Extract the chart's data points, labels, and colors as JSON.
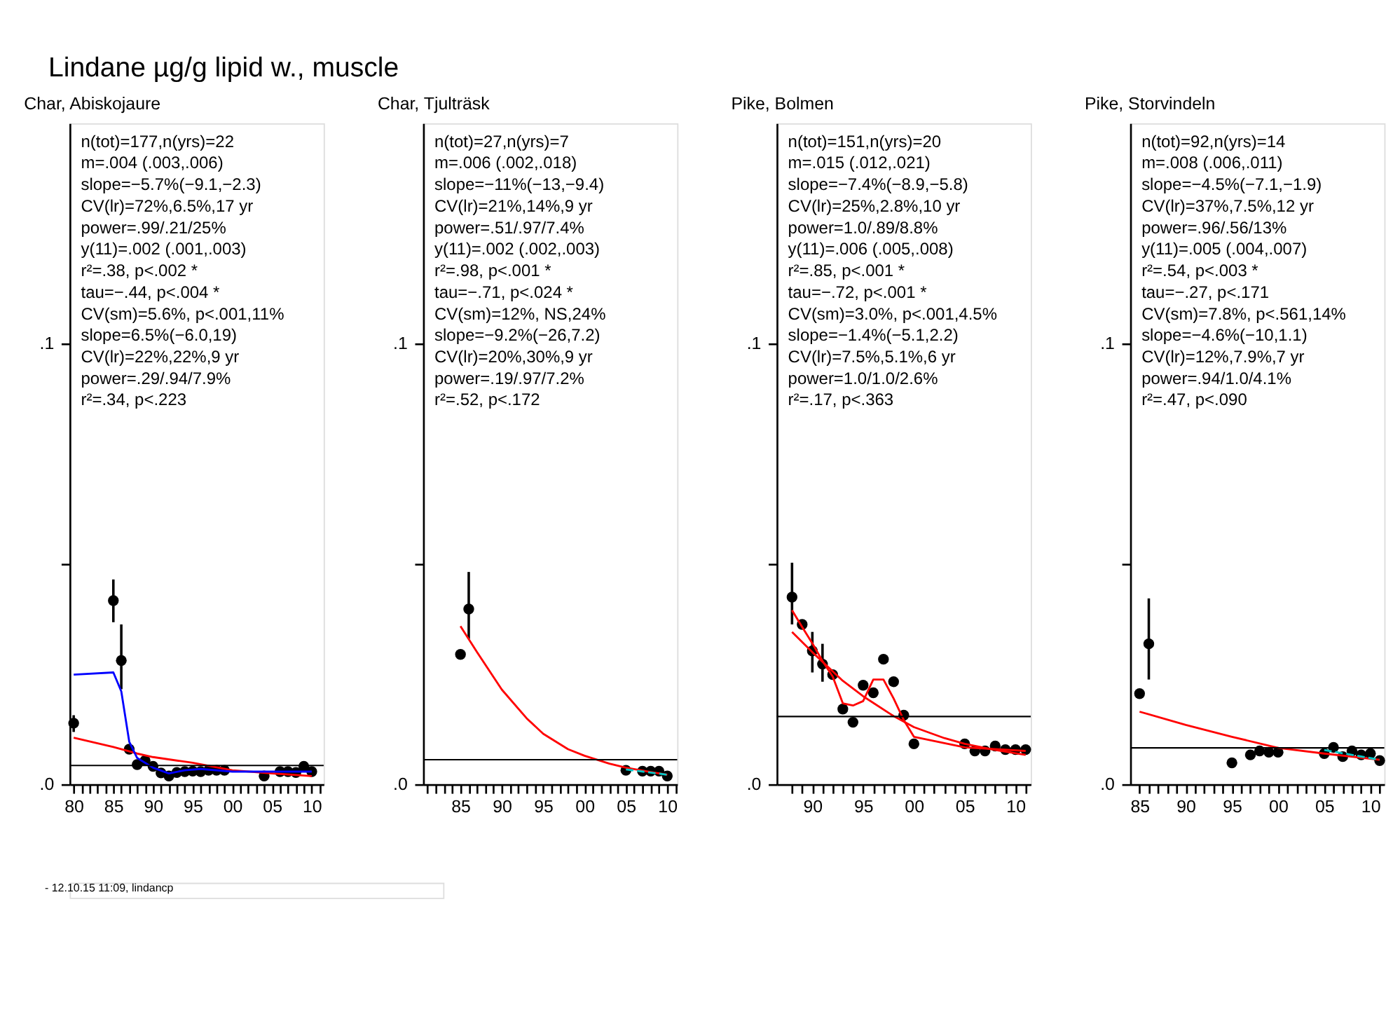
{
  "chart_data": [
    {
      "type": "scatter",
      "title": "Lindane µg/g lipid w., muscle",
      "subtitle": "Char, Abiskojaure",
      "xlim": [
        1979.5,
        2011.5
      ],
      "ylim": [
        0,
        0.15
      ],
      "yticks": [
        {
          "value": 0,
          "label": ".0"
        },
        {
          "value": 0.05,
          "label": null
        },
        {
          "value": 0.1,
          "label": ".1"
        }
      ],
      "xticks": [
        {
          "value": 1980,
          "label": "80"
        },
        {
          "value": 1981,
          "label": null
        },
        {
          "value": 1982,
          "label": null
        },
        {
          "value": 1983,
          "label": null
        },
        {
          "value": 1984,
          "label": null
        },
        {
          "value": 1985,
          "label": "85"
        },
        {
          "value": 1986,
          "label": null
        },
        {
          "value": 1987,
          "label": null
        },
        {
          "value": 1988,
          "label": null
        },
        {
          "value": 1989,
          "label": null
        },
        {
          "value": 1990,
          "label": "90"
        },
        {
          "value": 1991,
          "label": null
        },
        {
          "value": 1992,
          "label": null
        },
        {
          "value": 1993,
          "label": null
        },
        {
          "value": 1994,
          "label": null
        },
        {
          "value": 1995,
          "label": "95"
        },
        {
          "value": 1996,
          "label": null
        },
        {
          "value": 1997,
          "label": null
        },
        {
          "value": 1998,
          "label": null
        },
        {
          "value": 1999,
          "label": null
        },
        {
          "value": 2000,
          "label": "00"
        },
        {
          "value": 2001,
          "label": null
        },
        {
          "value": 2002,
          "label": null
        },
        {
          "value": 2003,
          "label": null
        },
        {
          "value": 2004,
          "label": null
        },
        {
          "value": 2005,
          "label": "05"
        },
        {
          "value": 2006,
          "label": null
        },
        {
          "value": 2007,
          "label": null
        },
        {
          "value": 2008,
          "label": null
        },
        {
          "value": 2009,
          "label": null
        },
        {
          "value": 2010,
          "label": "10"
        },
        {
          "value": 2011,
          "label": null
        }
      ],
      "series": [
        {
          "type": "scatter",
          "marker": "circle",
          "color": "#000000",
          "x": [
            1980,
            1985,
            1986,
            1987,
            1988,
            1989,
            1990,
            1991,
            1992,
            1993,
            1994,
            1995,
            1996,
            1997,
            1998,
            1999,
            2004,
            2006,
            2007,
            2008,
            2009,
            2010
          ],
          "values": [
            0.0139,
            0.0417,
            0.0281,
            0.008,
            0.0045,
            0.0054,
            0.0041,
            0.0026,
            0.0019,
            0.0027,
            0.0029,
            0.003,
            0.0029,
            0.0032,
            0.0032,
            0.0032,
            0.0019,
            0.0029,
            0.0029,
            0.0027,
            0.0041,
            0.0029
          ],
          "errors": [
            [
              0.0119,
              0.0157
            ],
            [
              0.0368,
              0.0465
            ],
            [
              0.0216,
              0.0363
            ],
            null,
            null,
            null,
            null,
            null,
            null,
            null,
            null,
            null,
            null,
            null,
            null,
            null,
            null,
            null,
            null,
            null,
            null,
            null
          ]
        },
        {
          "type": "line",
          "line_style": "solid",
          "color": "#ff0000",
          "x": [
            1980,
            1985,
            1988,
            1990,
            1995,
            2000,
            2005,
            2010
          ],
          "values": [
            0.0106,
            0.0085,
            0.007,
            0.0062,
            0.0049,
            0.0032,
            0.0025,
            0.0019
          ]
        },
        {
          "type": "line",
          "line_style": "solid",
          "color": "#0000ff",
          "x": [
            1980,
            1985,
            1986,
            1987,
            1988,
            1990,
            1992,
            1994,
            1996,
            2000,
            2010
          ],
          "values": [
            0.0249,
            0.0254,
            0.0211,
            0.0097,
            0.006,
            0.0038,
            0.0025,
            0.0032,
            0.0035,
            0.0029,
            0.0029
          ]
        }
      ],
      "ref_lines": [
        {
          "axis": "y",
          "value": 0.0043,
          "color": "#000000"
        }
      ],
      "annotations": [
        "n(tot)=177,n(yrs)=22",
        "m=.004 (.003,.006)",
        "slope=−5.7%(−9.1,−2.3)",
        "CV(lr)=72%,6.5%,17 yr",
        "power=.99/.21/25%",
        "y(11)=.002 (.001,.003)",
        "r²=.38, p<.002 *",
        "tau=−.44, p<.004 *",
        "CV(sm)=5.6%, p<.001,11%",
        "slope=6.5%(−6.0,19)",
        "CV(lr)=22%,22%,9 yr",
        "power=.29/.94/7.9%",
        "r²=.34, p<.223"
      ]
    },
    {
      "type": "scatter",
      "subtitle": "Char, Tjulträsk",
      "xlim": [
        1980.5,
        2011.2
      ],
      "ylim": [
        0,
        0.15
      ],
      "yticks": [
        {
          "value": 0,
          "label": ".0"
        },
        {
          "value": 0.05,
          "label": null
        },
        {
          "value": 0.1,
          "label": ".1"
        }
      ],
      "xticks": [
        {
          "value": 1981,
          "label": null
        },
        {
          "value": 1982,
          "label": null
        },
        {
          "value": 1983,
          "label": null
        },
        {
          "value": 1984,
          "label": null
        },
        {
          "value": 1985,
          "label": "85"
        },
        {
          "value": 1986,
          "label": null
        },
        {
          "value": 1987,
          "label": null
        },
        {
          "value": 1988,
          "label": null
        },
        {
          "value": 1989,
          "label": null
        },
        {
          "value": 1990,
          "label": "90"
        },
        {
          "value": 1991,
          "label": null
        },
        {
          "value": 1992,
          "label": null
        },
        {
          "value": 1993,
          "label": null
        },
        {
          "value": 1994,
          "label": null
        },
        {
          "value": 1995,
          "label": "95"
        },
        {
          "value": 1996,
          "label": null
        },
        {
          "value": 1997,
          "label": null
        },
        {
          "value": 1998,
          "label": null
        },
        {
          "value": 1999,
          "label": null
        },
        {
          "value": 2000,
          "label": "00"
        },
        {
          "value": 2001,
          "label": null
        },
        {
          "value": 2002,
          "label": null
        },
        {
          "value": 2003,
          "label": null
        },
        {
          "value": 2004,
          "label": null
        },
        {
          "value": 2005,
          "label": "05"
        },
        {
          "value": 2006,
          "label": null
        },
        {
          "value": 2007,
          "label": null
        },
        {
          "value": 2008,
          "label": null
        },
        {
          "value": 2009,
          "label": null
        },
        {
          "value": 2010,
          "label": "10"
        },
        {
          "value": 2011,
          "label": null
        }
      ],
      "series": [
        {
          "type": "scatter",
          "marker": "circle",
          "color": "#000000",
          "x": [
            1985,
            1986,
            2005,
            2007,
            2008,
            2009,
            2010
          ],
          "values": [
            0.0295,
            0.0398,
            0.0032,
            0.003,
            0.003,
            0.003,
            0.0019
          ],
          "errors": [
            null,
            [
              0.033,
              0.0482
            ],
            null,
            null,
            null,
            null,
            null
          ]
        },
        {
          "type": "line",
          "line_style": "solid",
          "color": "#ff0000",
          "x": [
            1985,
            1987,
            1990,
            1993,
            1995,
            1998,
            2000,
            2003,
            2005,
            2008,
            2010
          ],
          "values": [
            0.0359,
            0.03,
            0.0215,
            0.015,
            0.0115,
            0.008,
            0.0065,
            0.0047,
            0.0038,
            0.0028,
            0.0022
          ]
        },
        {
          "type": "line",
          "line_style": "dashed",
          "color": "#00c8c8",
          "x": [
            2005,
            2010
          ],
          "values": [
            0.0034,
            0.0022
          ]
        }
      ],
      "ref_lines": [
        {
          "axis": "y",
          "value": 0.0056,
          "color": "#000000"
        }
      ],
      "annotations": [
        "n(tot)=27,n(yrs)=7",
        "m=.006 (.002,.018)",
        "slope=−11%(−13,−9.4)",
        "CV(lr)=21%,14%,9 yr",
        "power=.51/.97/7.4%",
        "y(11)=.002 (.002,.003)",
        "r²=.98, p<.001 *",
        "tau=−.71, p<.024 *",
        "CV(sm)=12%, NS,24%",
        "slope=−9.2%(−26,7.2)",
        "CV(lr)=20%,30%,9 yr",
        "power=.19/.97/7.2%",
        "r²=.52, p<.172"
      ]
    },
    {
      "type": "scatter",
      "subtitle": "Pike, Bolmen",
      "xlim": [
        1986.5,
        2011.5
      ],
      "ylim": [
        0,
        0.15
      ],
      "yticks": [
        {
          "value": 0,
          "label": ".0"
        },
        {
          "value": 0.05,
          "label": null
        },
        {
          "value": 0.1,
          "label": ".1"
        }
      ],
      "xticks": [
        {
          "value": 1988,
          "label": null
        },
        {
          "value": 1989,
          "label": null
        },
        {
          "value": 1990,
          "label": "90"
        },
        {
          "value": 1991,
          "label": null
        },
        {
          "value": 1992,
          "label": null
        },
        {
          "value": 1993,
          "label": null
        },
        {
          "value": 1994,
          "label": null
        },
        {
          "value": 1995,
          "label": "95"
        },
        {
          "value": 1996,
          "label": null
        },
        {
          "value": 1997,
          "label": null
        },
        {
          "value": 1998,
          "label": null
        },
        {
          "value": 1999,
          "label": null
        },
        {
          "value": 2000,
          "label": "00"
        },
        {
          "value": 2001,
          "label": null
        },
        {
          "value": 2002,
          "label": null
        },
        {
          "value": 2003,
          "label": null
        },
        {
          "value": 2004,
          "label": null
        },
        {
          "value": 2005,
          "label": "05"
        },
        {
          "value": 2006,
          "label": null
        },
        {
          "value": 2007,
          "label": null
        },
        {
          "value": 2008,
          "label": null
        },
        {
          "value": 2009,
          "label": null
        },
        {
          "value": 2010,
          "label": "10"
        },
        {
          "value": 2011,
          "label": null
        }
      ],
      "series": [
        {
          "type": "scatter",
          "marker": "circle",
          "color": "#000000",
          "x": [
            1988,
            1989,
            1990,
            1991,
            1992,
            1993,
            1994,
            1995,
            1996,
            1997,
            1998,
            1999,
            2000,
            2005,
            2006,
            2007,
            2008,
            2009,
            2010,
            2011
          ],
          "values": [
            0.0425,
            0.0363,
            0.0303,
            0.0273,
            0.0249,
            0.0171,
            0.0141,
            0.0225,
            0.0208,
            0.0284,
            0.0233,
            0.0157,
            0.0092,
            0.0092,
            0.0076,
            0.0076,
            0.0087,
            0.0079,
            0.0079,
            0.0079
          ],
          "errors": [
            [
              0.0363,
              0.0503
            ],
            null,
            [
              0.0254,
              0.0346
            ],
            [
              0.0233,
              0.0319
            ],
            null,
            null,
            null,
            null,
            null,
            null,
            null,
            null,
            null,
            null,
            null,
            null,
            null,
            null,
            null,
            null
          ]
        },
        {
          "type": "line",
          "line_style": "solid",
          "color": "#ff0000",
          "x": [
            1988,
            1990,
            1993,
            1995,
            1998,
            2000,
            2003,
            2005,
            2008,
            2011
          ],
          "values": [
            0.0346,
            0.03,
            0.0235,
            0.02,
            0.0155,
            0.013,
            0.0105,
            0.0092,
            0.0078,
            0.0067
          ]
        },
        {
          "type": "line",
          "line_style": "solid",
          "color": "#ff0000",
          "x": [
            1988,
            1989,
            1990,
            1991,
            1992,
            1993,
            1994,
            1995,
            1996,
            1997,
            1998,
            1999,
            2000,
            2005,
            2011
          ],
          "values": [
            0.0395,
            0.0357,
            0.032,
            0.028,
            0.0245,
            0.0184,
            0.0179,
            0.0189,
            0.0238,
            0.0238,
            0.0195,
            0.0146,
            0.0108,
            0.0084,
            0.0076
          ]
        }
      ],
      "ref_lines": [
        {
          "axis": "y",
          "value": 0.0154,
          "color": "#000000"
        }
      ],
      "annotations": [
        "n(tot)=151,n(yrs)=20",
        "m=.015 (.012,.021)",
        "slope=−7.4%(−8.9,−5.8)",
        "CV(lr)=25%,2.8%,10 yr",
        "power=1.0/.89/8.8%",
        "y(11)=.006 (.005,.008)",
        "r²=.85, p<.001 *",
        "tau=−.72, p<.001 *",
        "CV(sm)=3.0%, p<.001,4.5%",
        "slope=−1.4%(−5.1,2.2)",
        "CV(lr)=7.5%,5.1%,6 yr",
        "power=1.0/1.0/2.6%",
        "r²=.17, p<.363"
      ]
    },
    {
      "type": "scatter",
      "subtitle": "Pike, Storvindeln",
      "xlim": [
        1984,
        2011.5
      ],
      "ylim": [
        0,
        0.15
      ],
      "yticks": [
        {
          "value": 0,
          "label": ".0"
        },
        {
          "value": 0.05,
          "label": null
        },
        {
          "value": 0.1,
          "label": ".1"
        }
      ],
      "xticks": [
        {
          "value": 1985,
          "label": "85"
        },
        {
          "value": 1986,
          "label": null
        },
        {
          "value": 1987,
          "label": null
        },
        {
          "value": 1988,
          "label": null
        },
        {
          "value": 1989,
          "label": null
        },
        {
          "value": 1990,
          "label": "90"
        },
        {
          "value": 1991,
          "label": null
        },
        {
          "value": 1992,
          "label": null
        },
        {
          "value": 1993,
          "label": null
        },
        {
          "value": 1994,
          "label": null
        },
        {
          "value": 1995,
          "label": "95"
        },
        {
          "value": 1996,
          "label": null
        },
        {
          "value": 1997,
          "label": null
        },
        {
          "value": 1998,
          "label": null
        },
        {
          "value": 1999,
          "label": null
        },
        {
          "value": 2000,
          "label": "00"
        },
        {
          "value": 2001,
          "label": null
        },
        {
          "value": 2002,
          "label": null
        },
        {
          "value": 2003,
          "label": null
        },
        {
          "value": 2004,
          "label": null
        },
        {
          "value": 2005,
          "label": "05"
        },
        {
          "value": 2006,
          "label": null
        },
        {
          "value": 2007,
          "label": null
        },
        {
          "value": 2008,
          "label": null
        },
        {
          "value": 2009,
          "label": null
        },
        {
          "value": 2010,
          "label": "10"
        },
        {
          "value": 2011,
          "label": null
        }
      ],
      "series": [
        {
          "type": "scatter",
          "marker": "circle",
          "color": "#000000",
          "x": [
            1985,
            1986,
            1995,
            1997,
            1998,
            1999,
            2000,
            2005,
            2006,
            2007,
            2008,
            2009,
            2010,
            2011
          ],
          "values": [
            0.0206,
            0.0319,
            0.0049,
            0.0067,
            0.0076,
            0.0073,
            0.0073,
            0.007,
            0.0084,
            0.0063,
            0.0076,
            0.0067,
            0.007,
            0.0054
          ],
          "errors": [
            null,
            [
              0.0238,
              0.0422
            ],
            null,
            null,
            null,
            null,
            null,
            null,
            null,
            null,
            null,
            null,
            null,
            null
          ]
        },
        {
          "type": "line",
          "line_style": "solid",
          "color": "#ff0000",
          "x": [
            1985,
            1990,
            1995,
            2000,
            2005,
            2011
          ],
          "values": [
            0.0165,
            0.0135,
            0.0108,
            0.0083,
            0.007,
            0.0056
          ]
        },
        {
          "type": "line",
          "line_style": "dashed",
          "color": "#00c8c8",
          "x": [
            2005,
            2011
          ],
          "values": [
            0.0078,
            0.0056
          ]
        }
      ],
      "ref_lines": [
        {
          "axis": "y",
          "value": 0.0083,
          "color": "#000000"
        }
      ],
      "annotations": [
        "n(tot)=92,n(yrs)=14",
        "m=.008 (.006,.011)",
        "slope=−4.5%(−7.1,−1.9)",
        "CV(lr)=37%,7.5%,12 yr",
        "power=.96/.56/13%",
        "y(11)=.005 (.004,.007)",
        "r²=.54, p<.003 *",
        "tau=−.27, p<.171",
        "CV(sm)=7.8%, p<.561,14%",
        "slope=−4.6%(−10,1.1)",
        "CV(lr)=12%,7.9%,7 yr",
        "power=.94/1.0/4.1%",
        "r²=.47, p<.090"
      ]
    },
    {
      "type": "other",
      "annotations": [
        "- 12.10.15 11:09, lindancp"
      ]
    }
  ]
}
